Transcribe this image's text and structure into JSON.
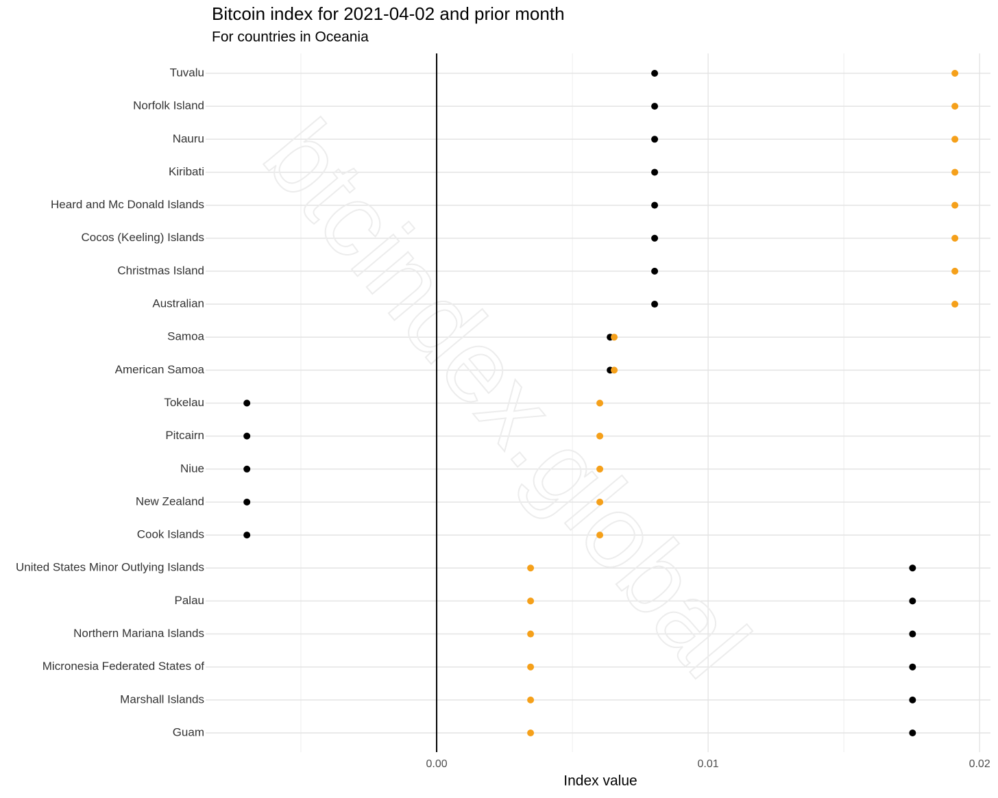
{
  "chart_data": {
    "type": "dot",
    "title": "Bitcoin index for 2021-04-02 and prior month",
    "subtitle": "For countries in Oceania",
    "x_label": "Index value",
    "watermark": "btcindex.global",
    "categories": [
      "Tuvalu",
      "Norfolk Island",
      "Nauru",
      "Kiribati",
      "Heard and Mc Donald Islands",
      "Cocos (Keeling) Islands",
      "Christmas Island",
      "Australian",
      "Samoa",
      "American Samoa",
      "Tokelau",
      "Pitcairn",
      "Niue",
      "New Zealand",
      "Cook Islands",
      "United States Minor Outlying Islands",
      "Palau",
      "Northern Mariana Islands",
      "Micronesia Federated States of",
      "Marshall Islands",
      "Guam"
    ],
    "series": [
      {
        "color": "#000000",
        "values": [
          0.00803,
          0.00803,
          0.00803,
          0.00803,
          0.00803,
          0.00803,
          0.00803,
          0.00803,
          0.00639,
          0.00639,
          -0.00699,
          -0.00699,
          -0.00699,
          -0.00699,
          -0.00699,
          0.01753,
          0.01753,
          0.01753,
          0.01753,
          0.01753,
          0.01753
        ]
      },
      {
        "color": "#f5a01a",
        "values": [
          0.01909,
          0.01909,
          0.01909,
          0.01909,
          0.01909,
          0.01909,
          0.01909,
          0.01909,
          0.00654,
          0.00654,
          0.00601,
          0.00601,
          0.00601,
          0.00601,
          0.00601,
          0.00346,
          0.00346,
          0.00346,
          0.00346,
          0.00346,
          0.00346
        ]
      }
    ],
    "xlim": [
      -0.00851,
      0.0204
    ],
    "xticks": [
      {
        "value": 0,
        "label": "0.00"
      },
      {
        "value": 0.01,
        "label": "0.01"
      },
      {
        "value": 0.02,
        "label": "0.02"
      }
    ],
    "xminor": [
      -0.005,
      0.005,
      0.015
    ],
    "zero_line": 0,
    "grid": true
  }
}
